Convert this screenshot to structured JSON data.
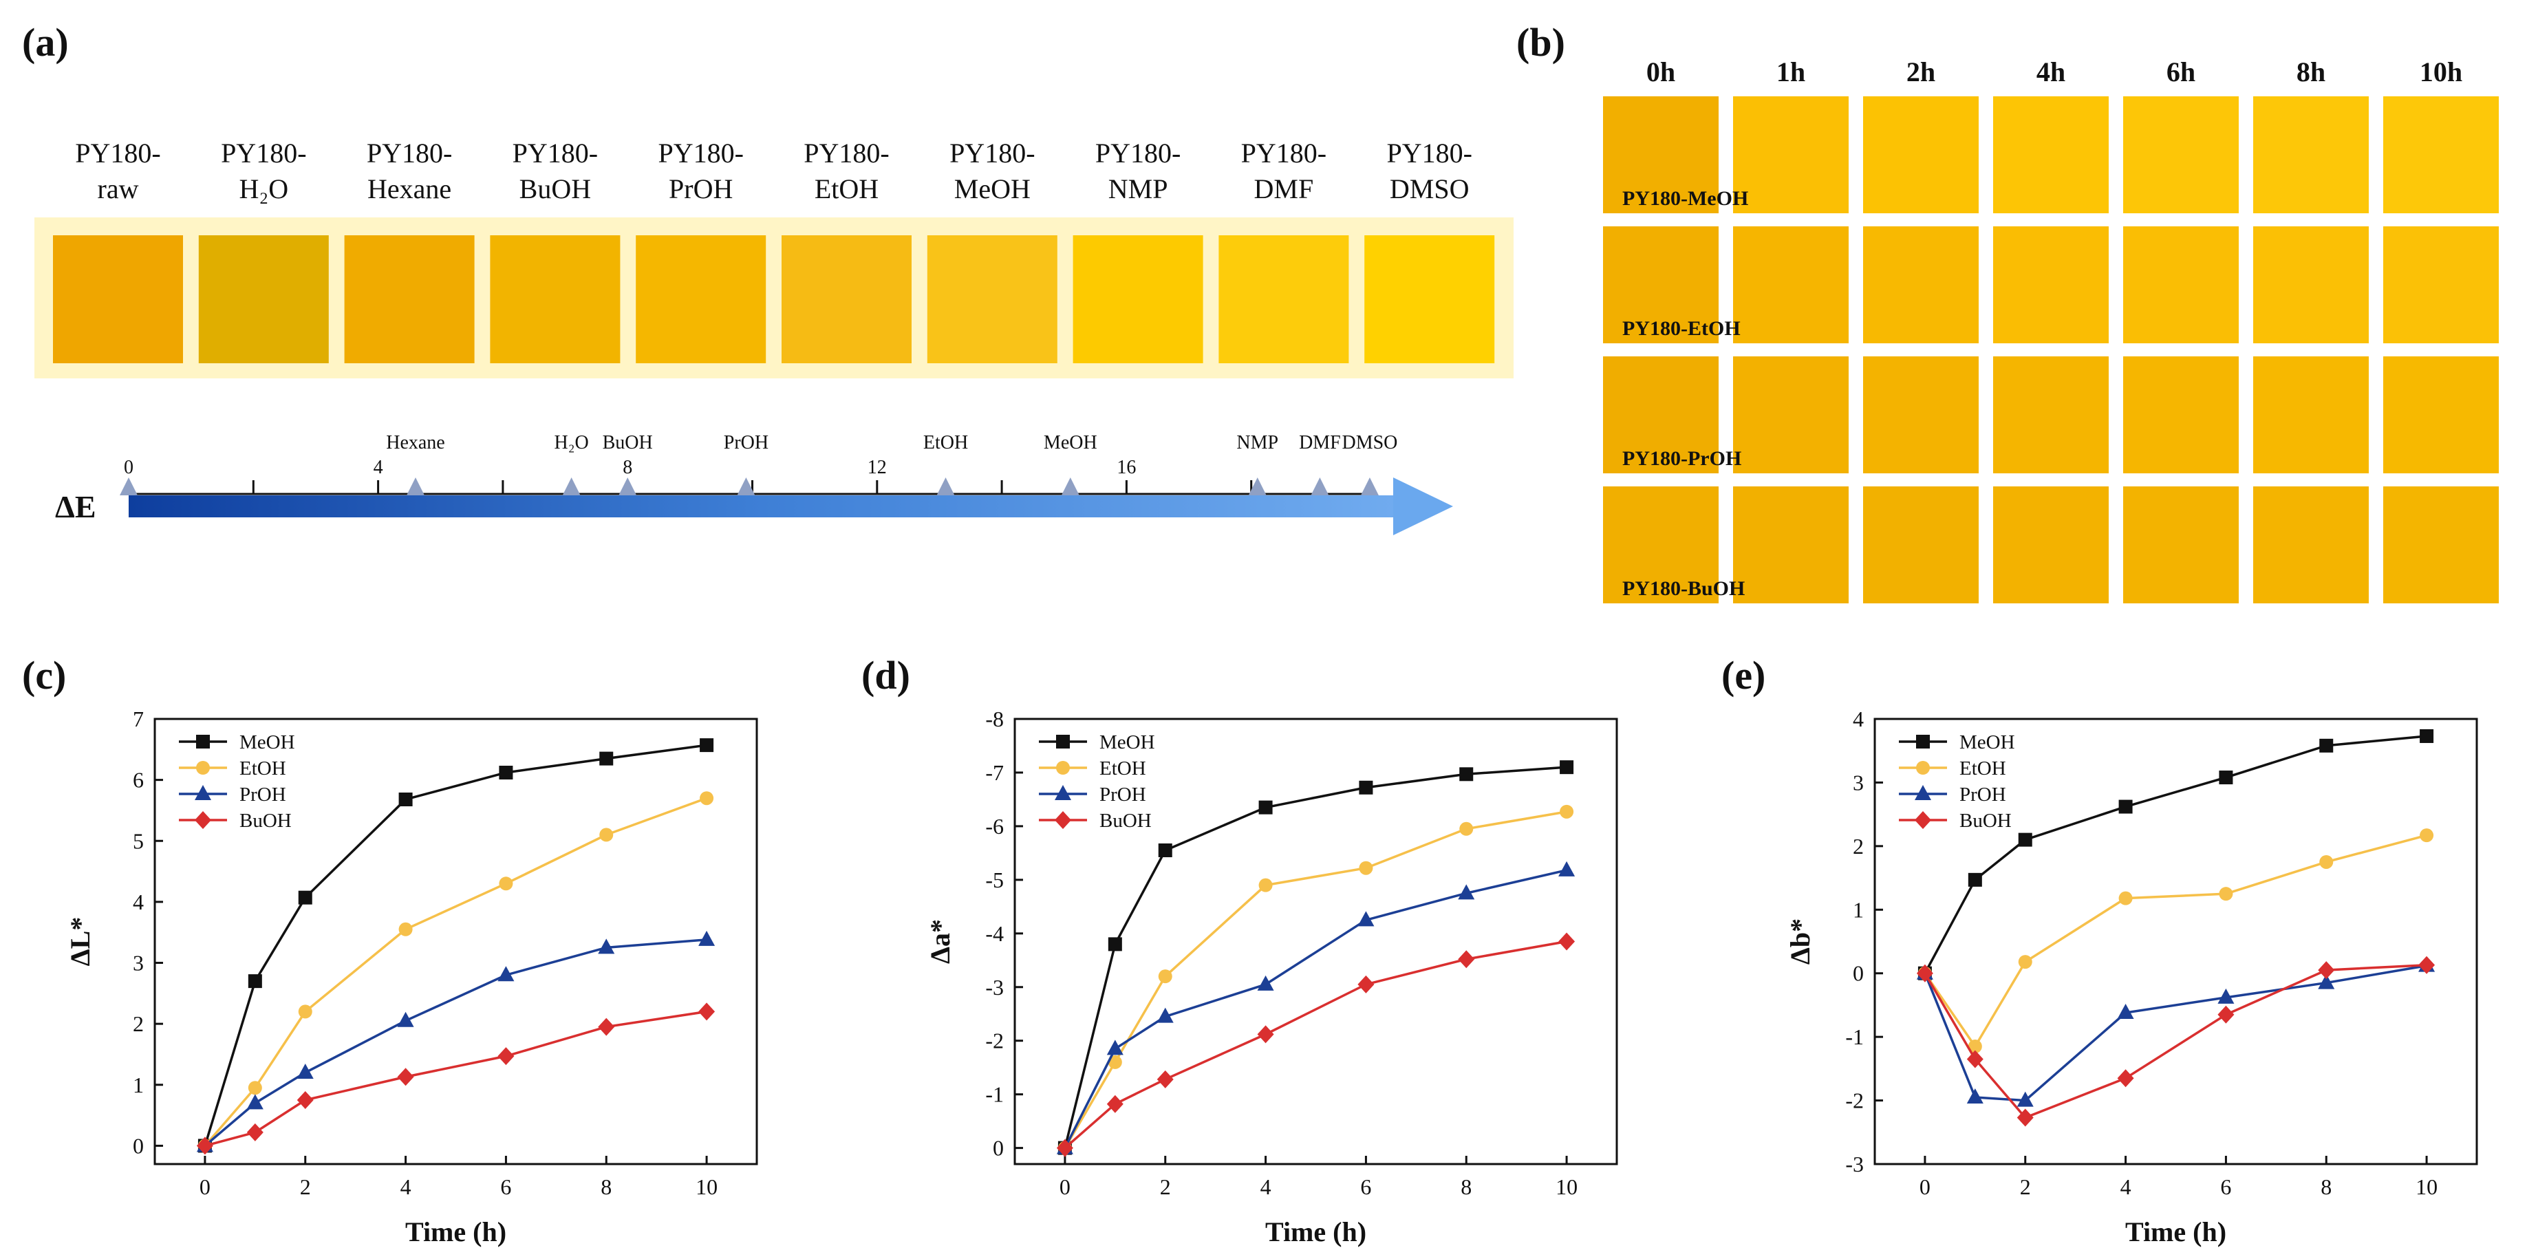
{
  "panel_a": {
    "label": "(a)",
    "samples": [
      {
        "line1": "PY180-",
        "line2": "raw",
        "color": "#EFA600"
      },
      {
        "line1": "PY180-",
        "line2": "H₂O",
        "color": "#E0AE00"
      },
      {
        "line1": "PY180-",
        "line2": "Hexane",
        "color": "#F0AB00"
      },
      {
        "line1": "PY180-",
        "line2": "BuOH",
        "color": "#F2B400"
      },
      {
        "line1": "PY180-",
        "line2": "PrOH",
        "color": "#F5B700"
      },
      {
        "line1": "PY180-",
        "line2": "EtOH",
        "color": "#F6BB14"
      },
      {
        "line1": "PY180-",
        "line2": "MeOH",
        "color": "#F9C318"
      },
      {
        "line1": "PY180-",
        "line2": "NMP",
        "color": "#FDCA00"
      },
      {
        "line1": "PY180-",
        "line2": "DMF",
        "color": "#FDCC0B"
      },
      {
        "line1": "PY180-",
        "line2": "DMSO",
        "color": "#FFD100"
      }
    ],
    "scale": {
      "label": "ΔE",
      "min": 0,
      "max": 20,
      "tick_labels": [
        "0",
        "4",
        "8",
        "12",
        "16"
      ],
      "markers": [
        {
          "name": "0",
          "value": 0
        },
        {
          "name": "Hexane",
          "value": 4.6
        },
        {
          "name": "H₂O",
          "value": 7.1
        },
        {
          "name": "BuOH",
          "value": 8.0
        },
        {
          "name": "PrOH",
          "value": 9.9
        },
        {
          "name": "EtOH",
          "value": 13.1
        },
        {
          "name": "MeOH",
          "value": 15.1
        },
        {
          "name": "NMP",
          "value": 18.1
        },
        {
          "name": "DMF",
          "value": 19.1
        },
        {
          "name": "DMSO",
          "value": 19.9
        }
      ]
    }
  },
  "panel_b": {
    "label": "(b)",
    "times": [
      "0h",
      "1h",
      "2h",
      "4h",
      "6h",
      "8h",
      "10h"
    ],
    "rows": [
      {
        "name": "PY180-MeOH",
        "colors": [
          "#F2AF00",
          "#FBBF04",
          "#FCC203",
          "#FDC505",
          "#FDC607",
          "#FDC708",
          "#FDC809"
        ]
      },
      {
        "name": "PY180-EtOH",
        "colors": [
          "#F2AF00",
          "#F6B500",
          "#F8B901",
          "#FABD03",
          "#FABE04",
          "#FBC005",
          "#FBC106"
        ]
      },
      {
        "name": "PY180-PrOH",
        "colors": [
          "#F0AD00",
          "#F3B100",
          "#F4B300",
          "#F5B500",
          "#F6B600",
          "#F7B800",
          "#F7B900"
        ]
      },
      {
        "name": "PY180-BuOH",
        "colors": [
          "#F1AF00",
          "#F2B000",
          "#F2B100",
          "#F3B200",
          "#F3B300",
          "#F4B400",
          "#F4B500"
        ]
      }
    ]
  },
  "chart_data": [
    {
      "panel": "(c)",
      "type": "line",
      "title": "",
      "xlabel": "Time (h)",
      "ylabel": "ΔL*",
      "x": [
        0,
        1,
        2,
        4,
        6,
        8,
        10
      ],
      "xlim": [
        -1,
        11
      ],
      "xticks": [
        0,
        2,
        4,
        6,
        8,
        10
      ],
      "ylim": [
        -0.3,
        7
      ],
      "yticks": [
        0,
        1,
        2,
        3,
        4,
        5,
        6,
        7
      ],
      "legend": "top-left",
      "series": [
        {
          "name": "MeOH",
          "values": [
            0,
            2.7,
            4.07,
            5.68,
            6.12,
            6.35,
            6.57
          ],
          "color": "#111111",
          "marker": "square"
        },
        {
          "name": "EtOH",
          "values": [
            0,
            0.95,
            2.2,
            3.55,
            4.3,
            5.1,
            5.7
          ],
          "color": "#F6C04A",
          "marker": "circle"
        },
        {
          "name": "PrOH",
          "values": [
            0,
            0.7,
            1.2,
            2.05,
            2.8,
            3.25,
            3.38
          ],
          "color": "#1C3F95",
          "marker": "triangle"
        },
        {
          "name": "BuOH",
          "values": [
            0,
            0.22,
            0.75,
            1.13,
            1.47,
            1.95,
            2.2
          ],
          "color": "#D92F2F",
          "marker": "diamond"
        }
      ]
    },
    {
      "panel": "(d)",
      "type": "line",
      "title": "",
      "xlabel": "Time (h)",
      "ylabel": "Δa*",
      "x": [
        0,
        1,
        2,
        4,
        6,
        8,
        10
      ],
      "xlim": [
        -1,
        11
      ],
      "xticks": [
        0,
        2,
        4,
        6,
        8,
        10
      ],
      "ylim": [
        0.3,
        -8
      ],
      "yticks": [
        0,
        -1,
        -2,
        -3,
        -4,
        -5,
        -6,
        -7,
        -8
      ],
      "legend": "top-left",
      "series": [
        {
          "name": "MeOH",
          "values": [
            0,
            -3.8,
            -5.55,
            -6.35,
            -6.72,
            -6.97,
            -7.1
          ],
          "color": "#111111",
          "marker": "square"
        },
        {
          "name": "EtOH",
          "values": [
            0,
            -1.6,
            -3.2,
            -4.9,
            -5.22,
            -5.95,
            -6.27
          ],
          "color": "#F6C04A",
          "marker": "circle"
        },
        {
          "name": "PrOH",
          "values": [
            0,
            -1.85,
            -2.45,
            -3.05,
            -4.25,
            -4.75,
            -5.18
          ],
          "color": "#1C3F95",
          "marker": "triangle"
        },
        {
          "name": "BuOH",
          "values": [
            0,
            -0.82,
            -1.28,
            -2.12,
            -3.05,
            -3.52,
            -3.85
          ],
          "color": "#D92F2F",
          "marker": "diamond"
        }
      ]
    },
    {
      "panel": "(e)",
      "type": "line",
      "title": "",
      "xlabel": "Time (h)",
      "ylabel": "Δb*",
      "x": [
        0,
        1,
        2,
        4,
        6,
        8,
        10
      ],
      "xlim": [
        -1,
        11
      ],
      "xticks": [
        0,
        2,
        4,
        6,
        8,
        10
      ],
      "ylim": [
        -3,
        4
      ],
      "yticks": [
        -3,
        -2,
        -1,
        0,
        1,
        2,
        3,
        4
      ],
      "legend": "top-left",
      "series": [
        {
          "name": "MeOH",
          "values": [
            0,
            1.47,
            2.1,
            2.62,
            3.08,
            3.58,
            3.73
          ],
          "color": "#111111",
          "marker": "square"
        },
        {
          "name": "EtOH",
          "values": [
            0,
            -1.15,
            0.18,
            1.18,
            1.25,
            1.75,
            2.17
          ],
          "color": "#F6C04A",
          "marker": "circle"
        },
        {
          "name": "PrOH",
          "values": [
            0,
            -1.95,
            -2.0,
            -0.62,
            -0.38,
            -0.15,
            0.12
          ],
          "color": "#1C3F95",
          "marker": "triangle"
        },
        {
          "name": "BuOH",
          "values": [
            0,
            -1.35,
            -2.27,
            -1.65,
            -0.65,
            0.05,
            0.13
          ],
          "color": "#D92F2F",
          "marker": "diamond"
        }
      ]
    }
  ]
}
